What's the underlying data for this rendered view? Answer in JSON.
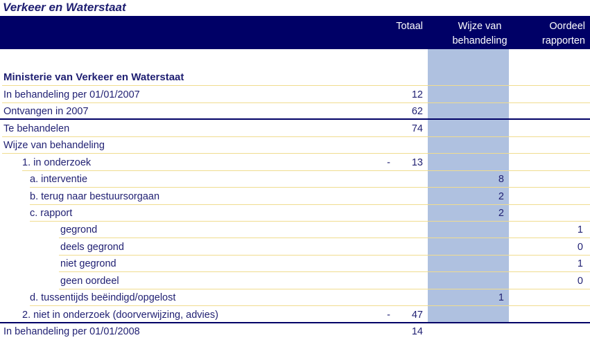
{
  "title": "Verkeer en Waterstaat",
  "header": {
    "totaal": "Totaal",
    "wijze_line1": "Wijze van",
    "wijze_line2": "behandeling",
    "oordeel_line1": "Oordeel",
    "oordeel_line2": "rapporten"
  },
  "colors": {
    "header_bar": "#000066",
    "highlight_column": "#afc1e0",
    "separator_line": "#f0dc8e",
    "text": "#1f1f72"
  },
  "rows": [
    {
      "label": "Ministerie van Verkeer en Waterstaat",
      "indent": 0,
      "bold": true,
      "dash": "",
      "totaal": "",
      "wijze": "",
      "oordeel": "",
      "sep": "yellow"
    },
    {
      "label": "In behandeling per 01/01/2007",
      "indent": 0,
      "bold": false,
      "dash": "",
      "totaal": "12",
      "wijze": "",
      "oordeel": "",
      "sep": "yellow"
    },
    {
      "label": "Ontvangen in 2007",
      "indent": 0,
      "bold": false,
      "dash": "",
      "totaal": "62",
      "wijze": "",
      "oordeel": "",
      "sep": "navy"
    },
    {
      "label": "Te behandelen",
      "indent": 0,
      "bold": false,
      "dash": "",
      "totaal": "74",
      "wijze": "",
      "oordeel": "",
      "sep": "yellow"
    },
    {
      "label": "Wijze van behandeling",
      "indent": 0,
      "bold": false,
      "dash": "",
      "totaal": "",
      "wijze": "",
      "oordeel": "",
      "sep": "yellow"
    },
    {
      "label": "1. in onderzoek",
      "indent": 1,
      "bold": false,
      "dash": "-",
      "totaal": "13",
      "wijze": "",
      "oordeel": "",
      "sep": "yellow"
    },
    {
      "label": "a. interventie",
      "indent": 2,
      "bold": false,
      "dash": "",
      "totaal": "",
      "wijze": "8",
      "oordeel": "",
      "sep": "yellow"
    },
    {
      "label": "b. terug naar bestuursorgaan",
      "indent": 2,
      "bold": false,
      "dash": "",
      "totaal": "",
      "wijze": "2",
      "oordeel": "",
      "sep": "yellow"
    },
    {
      "label": "c. rapport",
      "indent": 2,
      "bold": false,
      "dash": "",
      "totaal": "",
      "wijze": "2",
      "oordeel": "",
      "sep": "yellow"
    },
    {
      "label": "gegrond",
      "indent": 3,
      "bold": false,
      "dash": "",
      "totaal": "",
      "wijze": "",
      "oordeel": "1",
      "sep": "yellow"
    },
    {
      "label": "deels gegrond",
      "indent": 3,
      "bold": false,
      "dash": "",
      "totaal": "",
      "wijze": "",
      "oordeel": "0",
      "sep": "yellow"
    },
    {
      "label": "niet gegrond",
      "indent": 3,
      "bold": false,
      "dash": "",
      "totaal": "",
      "wijze": "",
      "oordeel": "1",
      "sep": "yellow"
    },
    {
      "label": "geen oordeel",
      "indent": 3,
      "bold": false,
      "dash": "",
      "totaal": "",
      "wijze": "",
      "oordeel": "0",
      "sep": "yellow"
    },
    {
      "label": "d. tussentijds beëindigd/opgelost",
      "indent": 2,
      "bold": false,
      "dash": "",
      "totaal": "",
      "wijze": "1",
      "oordeel": "",
      "sep": "yellow"
    },
    {
      "label": "2. niet in onderzoek (doorverwijzing, advies)",
      "indent": 1,
      "bold": false,
      "dash": "-",
      "totaal": "47",
      "wijze": "",
      "oordeel": "",
      "sep": "navy"
    },
    {
      "label": "In behandeling per 01/01/2008",
      "indent": 0,
      "bold": false,
      "dash": "",
      "totaal": "14",
      "wijze": "",
      "oordeel": "",
      "sep": "none"
    }
  ]
}
